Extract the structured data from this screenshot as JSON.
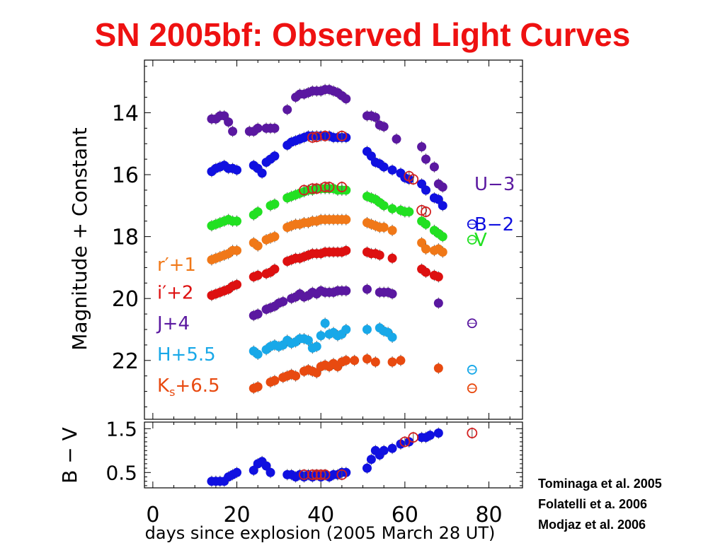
{
  "title": "SN 2005bf: Observed Light Curves",
  "references": [
    "Tominaga et al. 2005",
    "Folatelli et a. 2006",
    "Modjaz et al. 2006"
  ],
  "colors": {
    "title": "#ee1111",
    "U": "#5a18a0",
    "B": "#1010e0",
    "V": "#22e022",
    "r": "#f07818",
    "i": "#dd1010",
    "J": "#5a18a0",
    "H": "#18a8e8",
    "Ks": "#e84a10",
    "open_marker": "#d42020",
    "errorbar": "#555555"
  },
  "chart_data": [
    {
      "type": "scatter",
      "ylabel": "Magnitude + Constant",
      "xlabel": "days since explosion (2005 March 28 UT)",
      "xlim": [
        -2,
        88
      ],
      "ylim": [
        23.9,
        12.3
      ],
      "y_ticks": [
        14,
        16,
        18,
        20,
        22
      ],
      "x_ticks": [
        0,
        20,
        40,
        60,
        80
      ],
      "y_inverted": true,
      "series": [
        {
          "name": "U−3",
          "color_key": "U",
          "label_side": "right",
          "label_y": 16.3,
          "marker": "filled",
          "x": [
            14,
            15,
            16,
            17,
            18,
            19,
            23,
            24,
            25,
            27,
            28,
            29,
            32,
            34,
            35,
            36,
            37,
            38,
            39,
            40,
            41,
            42,
            43,
            44,
            45,
            46,
            51,
            52,
            53,
            54,
            55,
            58,
            64,
            65,
            67,
            68,
            69
          ],
          "y": [
            14.2,
            14.2,
            14.1,
            14.1,
            14.3,
            14.6,
            14.6,
            14.6,
            14.5,
            14.5,
            14.5,
            14.5,
            13.9,
            13.5,
            13.4,
            13.4,
            13.35,
            13.3,
            13.3,
            13.3,
            13.25,
            13.25,
            13.3,
            13.35,
            13.45,
            13.55,
            14.1,
            14.1,
            14.15,
            14.4,
            14.45,
            14.85,
            15.1,
            15.5,
            15.75,
            16.3,
            16.4
          ]
        },
        {
          "name": "B−2",
          "color_key": "B",
          "label_side": "right",
          "label_y": 17.6,
          "marker": "filled",
          "x": [
            14,
            15,
            16,
            17,
            18,
            19,
            20,
            24,
            25,
            26,
            27,
            28,
            29,
            32,
            33,
            34,
            35,
            36,
            37,
            38,
            39,
            40,
            41,
            42,
            43,
            44,
            45,
            46,
            51,
            52,
            53,
            54,
            55,
            57,
            59,
            60,
            61,
            64,
            65,
            67,
            68,
            69
          ],
          "y": [
            15.9,
            15.8,
            15.75,
            15.7,
            15.8,
            15.8,
            15.85,
            15.7,
            15.8,
            15.95,
            15.6,
            15.5,
            15.4,
            15.05,
            14.95,
            14.9,
            14.85,
            14.8,
            14.75,
            14.75,
            14.75,
            14.75,
            14.75,
            14.75,
            14.8,
            14.8,
            14.8,
            14.8,
            15.25,
            15.4,
            15.6,
            15.65,
            15.75,
            15.85,
            15.95,
            16.1,
            16.15,
            16.3,
            16.5,
            16.75,
            16.8,
            17.0
          ]
        },
        {
          "name": "V",
          "color_key": "V",
          "label_side": "right",
          "label_y": 18.1,
          "marker": "filled",
          "x": [
            14,
            15,
            16,
            17,
            18,
            19,
            20,
            24,
            25,
            28,
            29,
            32,
            33,
            34,
            35,
            36,
            37,
            38,
            39,
            40,
            41,
            42,
            43,
            44,
            45,
            46,
            51,
            52,
            53,
            54,
            55,
            57,
            59,
            60,
            61,
            64,
            65,
            67,
            68,
            69
          ],
          "y": [
            17.65,
            17.6,
            17.55,
            17.5,
            17.45,
            17.5,
            17.5,
            17.3,
            17.2,
            17.0,
            16.95,
            16.75,
            16.7,
            16.65,
            16.6,
            16.55,
            16.5,
            16.5,
            16.45,
            16.45,
            16.45,
            16.45,
            16.45,
            16.5,
            16.5,
            16.5,
            16.7,
            16.75,
            16.8,
            16.9,
            17.0,
            17.1,
            17.15,
            17.2,
            17.2,
            17.5,
            17.6,
            17.8,
            17.9,
            18.0
          ]
        },
        {
          "name": "r′+1",
          "color_key": "r",
          "label_side": "left",
          "label_y": 18.9,
          "marker": "filled",
          "x": [
            14,
            15,
            16,
            17,
            18,
            19,
            20,
            24,
            25,
            27,
            28,
            29,
            32,
            33,
            34,
            35,
            36,
            37,
            38,
            39,
            40,
            41,
            42,
            43,
            44,
            45,
            46,
            51,
            52,
            53,
            54,
            55,
            57,
            64,
            65,
            67,
            68,
            69
          ],
          "y": [
            18.75,
            18.7,
            18.65,
            18.6,
            18.55,
            18.45,
            18.45,
            18.2,
            18.3,
            18.1,
            18.05,
            18.0,
            17.7,
            17.65,
            17.6,
            17.6,
            17.55,
            17.55,
            17.5,
            17.5,
            17.45,
            17.45,
            17.45,
            17.45,
            17.45,
            17.45,
            17.45,
            17.55,
            17.6,
            17.65,
            17.7,
            17.7,
            17.8,
            18.2,
            18.4,
            18.45,
            18.4,
            18.5
          ]
        },
        {
          "name": "i′+2",
          "color_key": "i",
          "label_side": "left",
          "label_y": 19.8,
          "marker": "filled",
          "x": [
            14,
            15,
            16,
            17,
            18,
            19,
            20,
            24,
            25,
            27,
            28,
            29,
            32,
            33,
            34,
            35,
            36,
            37,
            38,
            39,
            40,
            41,
            42,
            43,
            44,
            45,
            46,
            51,
            52,
            53,
            54,
            57,
            64,
            65,
            67,
            68
          ],
          "y": [
            19.9,
            19.85,
            19.8,
            19.75,
            19.7,
            19.6,
            19.55,
            19.3,
            19.25,
            19.2,
            19.15,
            19.05,
            18.8,
            18.75,
            18.7,
            18.7,
            18.65,
            18.6,
            18.55,
            18.55,
            18.55,
            18.5,
            18.5,
            18.5,
            18.5,
            18.5,
            18.45,
            18.5,
            18.55,
            18.55,
            18.6,
            18.7,
            19.05,
            19.15,
            19.25,
            19.3
          ]
        },
        {
          "name": "J+4",
          "color_key": "J",
          "label_side": "left",
          "label_y": 20.8,
          "marker": "filled",
          "x": [
            24,
            25,
            27,
            28,
            29,
            30,
            31,
            33,
            34,
            35,
            36,
            37,
            38,
            39,
            40,
            41,
            42,
            43,
            44,
            45,
            46,
            51,
            54,
            55,
            56,
            57,
            68
          ],
          "y": [
            20.55,
            20.5,
            20.35,
            20.3,
            20.25,
            20.15,
            20.1,
            20.0,
            19.95,
            19.85,
            19.95,
            19.9,
            19.8,
            19.85,
            19.75,
            19.8,
            19.8,
            19.8,
            19.75,
            19.75,
            19.75,
            19.7,
            19.8,
            19.8,
            19.8,
            19.85,
            20.15
          ]
        },
        {
          "name": "H+5.5",
          "color_key": "H",
          "label_side": "left",
          "label_y": 21.8,
          "marker": "filled",
          "x": [
            24,
            25,
            27,
            28,
            29,
            30,
            31,
            32,
            33,
            34,
            35,
            36,
            37,
            38,
            39,
            40,
            41,
            42,
            43,
            44,
            45,
            46,
            51,
            54,
            55,
            56,
            57
          ],
          "y": [
            21.7,
            21.8,
            21.65,
            21.55,
            21.5,
            21.55,
            21.5,
            21.35,
            21.45,
            21.4,
            21.3,
            21.3,
            21.35,
            21.6,
            21.55,
            21.2,
            20.8,
            21.15,
            21.1,
            21.2,
            21.15,
            21.0,
            21.0,
            20.95,
            21.05,
            21.1,
            21.25
          ]
        },
        {
          "name": "K",
          "subscript": "s",
          "suffix": "+6.5",
          "color_key": "Ks",
          "label_side": "left",
          "label_y": 22.8,
          "marker": "filled",
          "x": [
            24,
            25,
            28,
            29,
            31,
            32,
            33,
            34,
            36,
            37,
            38,
            39,
            40,
            41,
            42,
            43,
            44,
            45,
            46,
            48,
            51,
            53,
            57,
            59,
            68
          ],
          "y": [
            22.9,
            22.85,
            22.7,
            22.65,
            22.55,
            22.5,
            22.45,
            22.5,
            22.35,
            22.3,
            22.35,
            22.4,
            22.2,
            22.15,
            22.2,
            22.1,
            22.2,
            22.05,
            22.0,
            22.0,
            21.95,
            22.05,
            22.05,
            22.0,
            22.25
          ]
        },
        {
          "name": "open B",
          "color_key": "open_marker",
          "marker": "open",
          "x": [
            38,
            39,
            41,
            45,
            61,
            62,
            64,
            65
          ],
          "y": [
            14.8,
            14.78,
            14.75,
            14.75,
            16.05,
            16.15,
            17.15,
            17.2
          ]
        },
        {
          "name": "open V",
          "color_key": "open_marker",
          "marker": "open",
          "x": [
            36,
            38,
            39,
            41,
            42,
            45
          ],
          "y": [
            16.5,
            16.45,
            16.45,
            16.4,
            16.4,
            16.4
          ]
        },
        {
          "name": "legend-open-markers",
          "marker": "open_series_right",
          "items": [
            {
              "color_key": "B",
              "y": 17.6
            },
            {
              "color_key": "V",
              "y": 18.1
            },
            {
              "color_key": "J",
              "y": 20.8
            },
            {
              "color_key": "H",
              "y": 22.3
            },
            {
              "color_key": "Ks",
              "y": 22.9
            }
          ],
          "x": 76
        }
      ]
    },
    {
      "type": "scatter",
      "ylabel": "B − V",
      "xlim": [
        -2,
        88
      ],
      "ylim": [
        0.15,
        1.65
      ],
      "y_ticks": [
        0.5,
        1.5
      ],
      "y_inverted": true,
      "series": [
        {
          "name": "B−V",
          "color_key": "B",
          "marker": "filled",
          "x": [
            14,
            15,
            16,
            17,
            18,
            19,
            20,
            24,
            25,
            26,
            27,
            28,
            32,
            33,
            34,
            35,
            36,
            37,
            38,
            39,
            40,
            41,
            42,
            43,
            44,
            45,
            46,
            51,
            52,
            53,
            54,
            55,
            57,
            59,
            61,
            64,
            65,
            66,
            68
          ],
          "y": [
            0.3,
            0.3,
            0.3,
            0.3,
            0.4,
            0.45,
            0.5,
            0.55,
            0.7,
            0.75,
            0.65,
            0.5,
            0.45,
            0.45,
            0.4,
            0.45,
            0.4,
            0.45,
            0.4,
            0.45,
            0.4,
            0.45,
            0.4,
            0.45,
            0.45,
            0.5,
            0.5,
            0.6,
            0.8,
            1.0,
            0.9,
            1.0,
            1.05,
            1.15,
            1.2,
            1.3,
            1.3,
            1.35,
            1.4
          ]
        },
        {
          "name": "open B−V",
          "color_key": "open_marker",
          "marker": "open",
          "x": [
            36,
            38,
            39,
            40,
            41,
            45,
            60,
            62,
            76
          ],
          "y": [
            0.45,
            0.45,
            0.45,
            0.45,
            0.45,
            0.45,
            1.2,
            1.3,
            1.4
          ]
        }
      ]
    }
  ]
}
